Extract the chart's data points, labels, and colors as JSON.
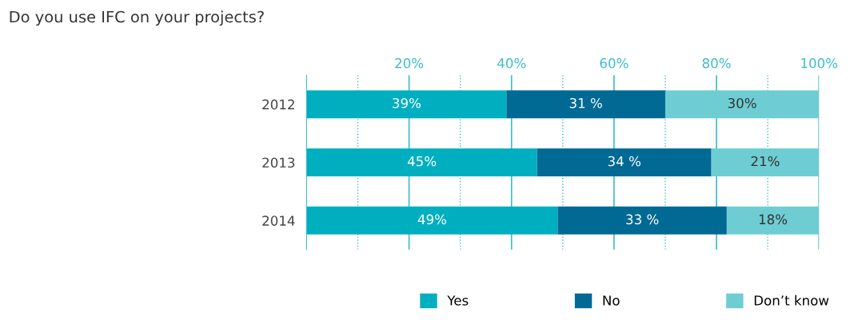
{
  "chart_data": {
    "type": "bar",
    "orientation": "horizontal",
    "stacked": true,
    "title": "Do you use IFC on your projects?",
    "categories": [
      "2012",
      "2013",
      "2014"
    ],
    "series": [
      {
        "name": "Yes",
        "color": "#00afbf",
        "values": [
          39,
          45,
          49
        ],
        "value_labels": [
          "39%",
          "45%",
          "49%"
        ]
      },
      {
        "name": "No",
        "color": "#006a94",
        "values": [
          31,
          34,
          33
        ],
        "value_labels": [
          "31 %",
          "34 %",
          "33 %"
        ]
      },
      {
        "name": "Don’t know",
        "color": "#6dcdd3",
        "values": [
          30,
          21,
          18
        ],
        "value_labels": [
          "30%",
          "21%",
          "18%"
        ]
      }
    ],
    "xlim": [
      0,
      100
    ],
    "xticks": [
      {
        "value": 20,
        "label": "20%"
      },
      {
        "value": 40,
        "label": "40%"
      },
      {
        "value": 60,
        "label": "60%"
      },
      {
        "value": 80,
        "label": "80%"
      },
      {
        "value": 100,
        "label": "100%"
      }
    ],
    "ref_lines": [
      {
        "axis": "x",
        "value": 10,
        "line_style": "dotted",
        "color": "#3dbcc8"
      },
      {
        "axis": "x",
        "value": 30,
        "line_style": "dotted",
        "color": "#3dbcc8"
      },
      {
        "axis": "x",
        "value": 50,
        "line_style": "dotted",
        "color": "#3dbcc8"
      },
      {
        "axis": "x",
        "value": 70,
        "line_style": "dotted",
        "color": "#3dbcc8"
      },
      {
        "axis": "x",
        "value": 90,
        "line_style": "dotted",
        "color": "#3dbcc8"
      }
    ],
    "grid": "x",
    "legend": "bottom right"
  }
}
